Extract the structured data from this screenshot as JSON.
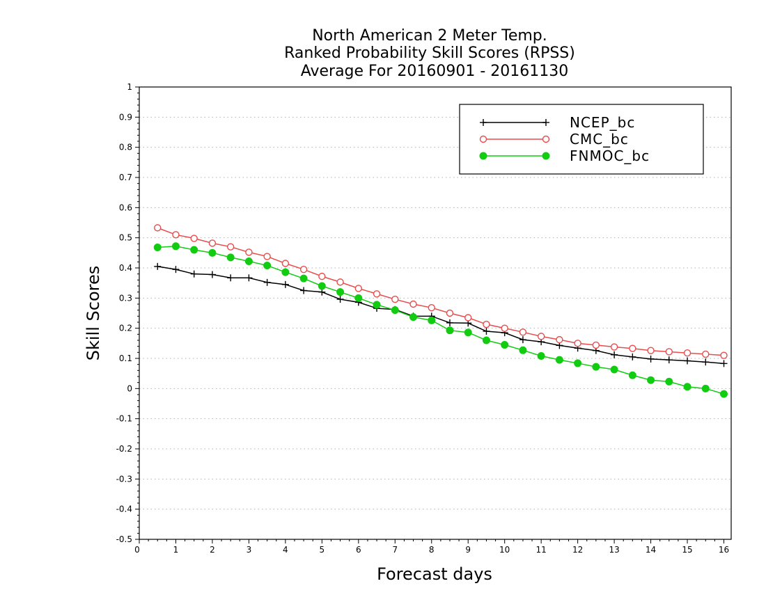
{
  "chart_data": {
    "type": "line",
    "title": [
      "North American 2 Meter Temp.",
      "Ranked Probability Skill Scores (RPSS)",
      "Average For 20160901 - 20161130"
    ],
    "xlabel": "Forecast days",
    "ylabel": "Skill Scores",
    "xlim": [
      0,
      16.2
    ],
    "ylim": [
      -0.5,
      1
    ],
    "x_ticks": [
      0,
      1,
      2,
      3,
      4,
      5,
      6,
      7,
      8,
      9,
      10,
      11,
      12,
      13,
      14,
      15,
      16
    ],
    "y_ticks": [
      -0.5,
      -0.4,
      -0.3,
      -0.2,
      -0.1,
      0,
      0.1,
      0.2,
      0.3,
      0.4,
      0.5,
      0.6,
      0.7,
      0.8,
      0.9,
      1
    ],
    "y_tick_labels": [
      "-0.5",
      "-0.4",
      "-0.3",
      "-0.2",
      "-0.1",
      "0",
      "0.1",
      "0.2",
      "0.3",
      "0.4",
      "0.5",
      "0.6",
      "0.7",
      "0.8",
      "0.9",
      "1"
    ],
    "grid": "horizontal dotted",
    "legend_position": "top-right",
    "x": [
      0.5,
      1,
      1.5,
      2,
      2.5,
      3,
      3.5,
      4,
      4.5,
      5,
      5.5,
      6,
      6.5,
      7,
      7.5,
      8,
      8.5,
      9,
      9.5,
      10,
      10.5,
      11,
      11.5,
      12,
      12.5,
      13,
      13.5,
      14,
      14.5,
      15,
      15.5,
      16
    ],
    "series": [
      {
        "name": "NCEP_bc",
        "color": "#000000",
        "marker": "plus",
        "values": [
          0.405,
          0.395,
          0.38,
          0.378,
          0.367,
          0.367,
          0.352,
          0.345,
          0.325,
          0.32,
          0.296,
          0.286,
          0.266,
          0.262,
          0.24,
          0.24,
          0.218,
          0.217,
          0.19,
          0.185,
          0.162,
          0.155,
          0.143,
          0.134,
          0.126,
          0.112,
          0.105,
          0.098,
          0.095,
          0.092,
          0.088,
          0.083
        ]
      },
      {
        "name": "CMC_bc",
        "color": "#e84c4c",
        "marker": "open-circle",
        "values": [
          0.533,
          0.51,
          0.498,
          0.482,
          0.47,
          0.452,
          0.438,
          0.415,
          0.395,
          0.372,
          0.353,
          0.332,
          0.314,
          0.296,
          0.28,
          0.268,
          0.25,
          0.235,
          0.213,
          0.2,
          0.187,
          0.173,
          0.162,
          0.15,
          0.144,
          0.138,
          0.133,
          0.126,
          0.122,
          0.118,
          0.114,
          0.11
        ]
      },
      {
        "name": "FNMOC_bc",
        "color": "#11cc11",
        "marker": "filled-circle",
        "values": [
          0.468,
          0.472,
          0.46,
          0.45,
          0.435,
          0.422,
          0.408,
          0.386,
          0.365,
          0.34,
          0.32,
          0.3,
          0.278,
          0.26,
          0.237,
          0.226,
          0.193,
          0.186,
          0.16,
          0.145,
          0.127,
          0.108,
          0.095,
          0.084,
          0.072,
          0.063,
          0.044,
          0.028,
          0.023,
          0.006,
          0,
          -0.018
        ]
      }
    ]
  }
}
